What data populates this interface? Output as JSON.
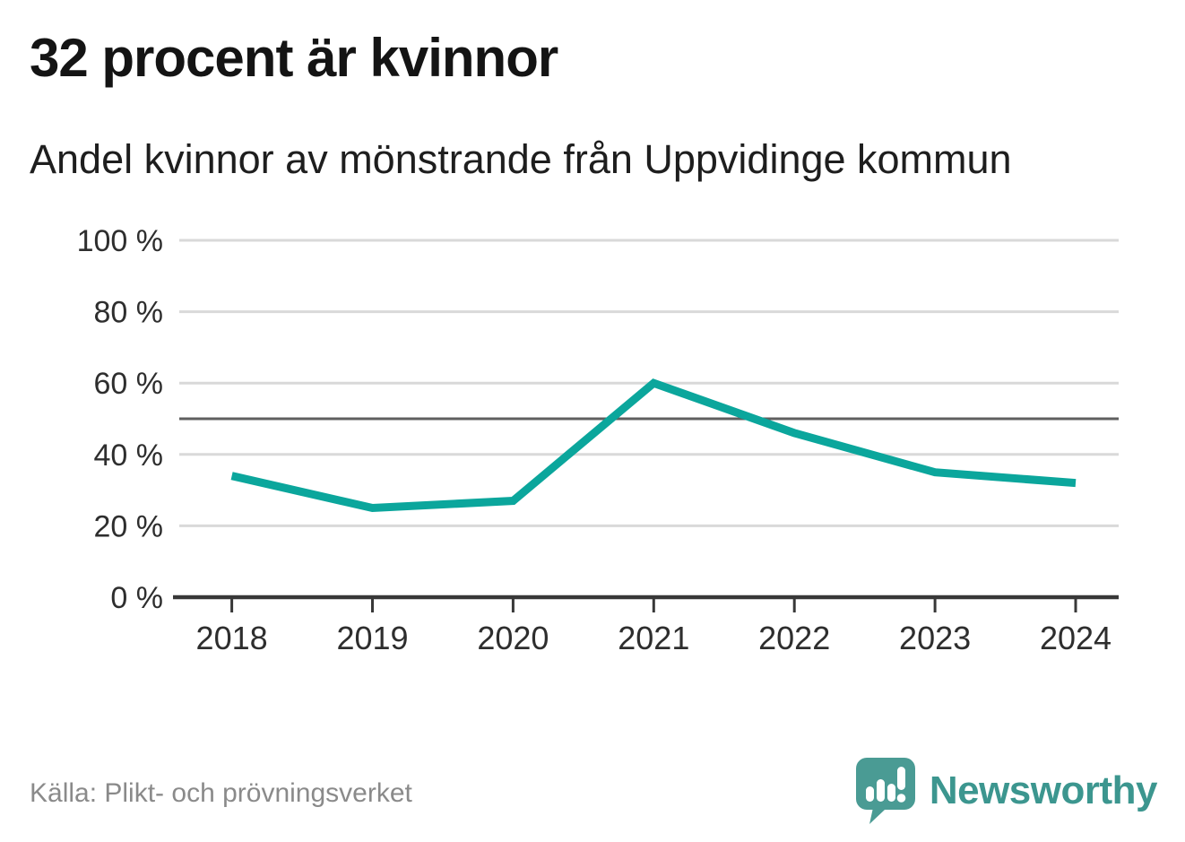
{
  "header": {
    "title": "32 procent är kvinnor",
    "subtitle": "Andel kvinnor av mönstrande från Uppvidinge kommun"
  },
  "chart_data": {
    "type": "line",
    "x": [
      2018,
      2019,
      2020,
      2021,
      2022,
      2023,
      2024
    ],
    "series": [
      {
        "name": "Andel kvinnor av mönstrande",
        "values": [
          34,
          25,
          27,
          60,
          46,
          35,
          32
        ],
        "color": "#0ba69c"
      }
    ],
    "title": "32 procent är kvinnor",
    "subtitle": "Andel kvinnor av mönstrande från Uppvidinge kommun",
    "xlabel": "",
    "ylabel": "",
    "ylim": [
      0,
      100
    ],
    "yticks": [
      0,
      20,
      40,
      60,
      80,
      100
    ],
    "ytick_suffix": " %",
    "xtick_labels": [
      "2018",
      "2019",
      "2020",
      "2021",
      "2022",
      "2023",
      "2024"
    ],
    "reference_line": 50,
    "grid": true,
    "legend": "none",
    "colors": {
      "line": "#0ba69c",
      "grid": "#d9d9d9",
      "reference": "#5f5f5f",
      "axis": "#383838",
      "tick_label": "#2e2e2e"
    }
  },
  "footer": {
    "source": "Källa: Plikt- och prövningsverket",
    "brand": "Newsworthy",
    "brand_color": "#3c968f",
    "brand_icon": "bar-chart-speech-bubble"
  }
}
